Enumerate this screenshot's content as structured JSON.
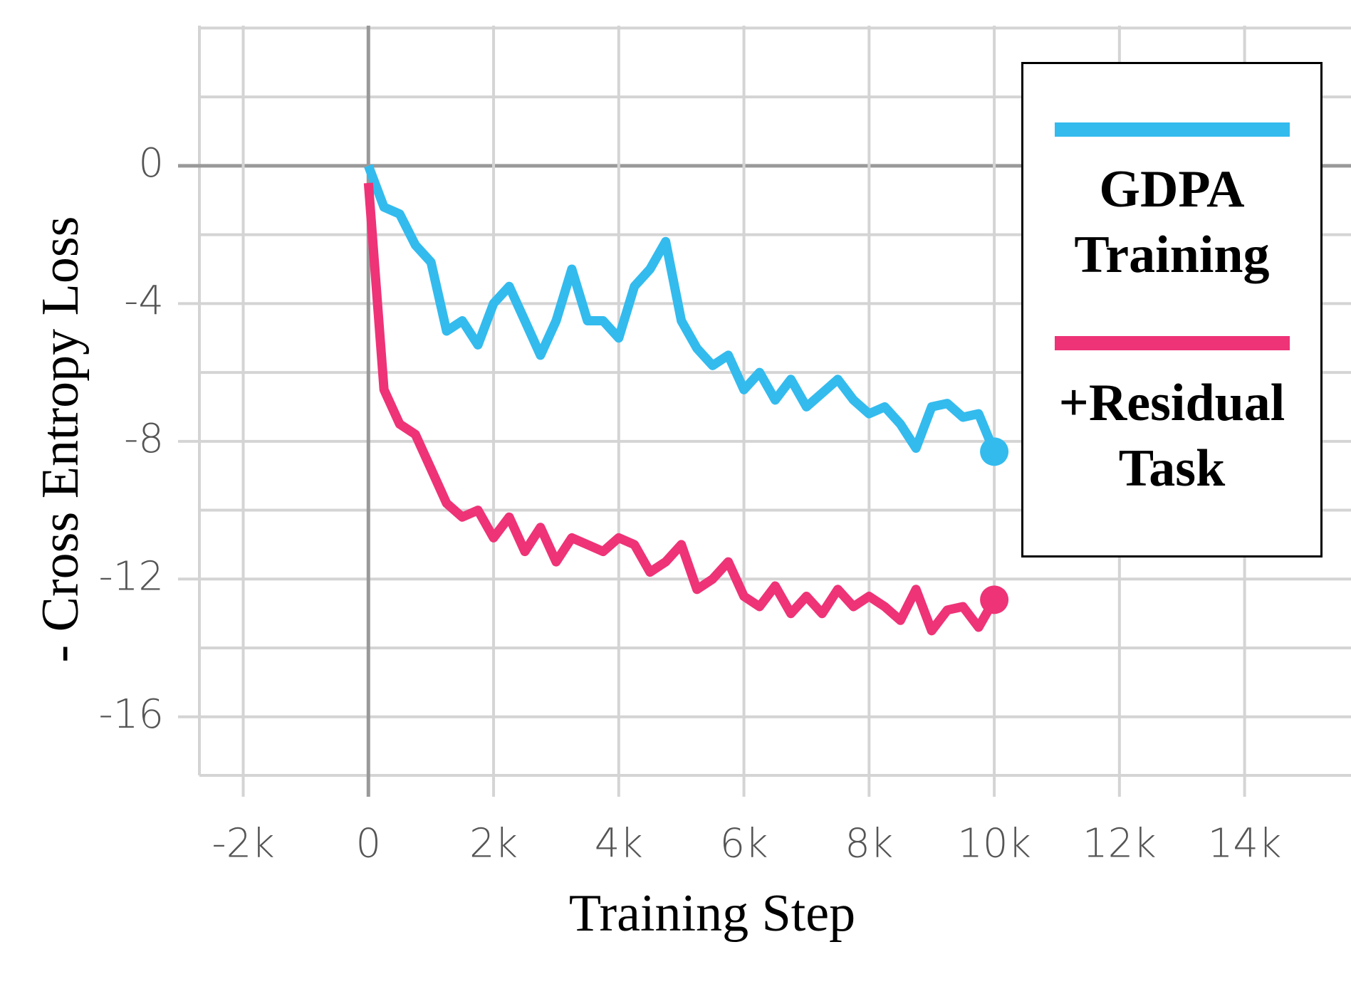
{
  "chart_data": {
    "type": "line",
    "x_label": "Training Step",
    "y_label": "- Cross Entropy Loss",
    "x": [
      0,
      250,
      500,
      750,
      1000,
      1250,
      1500,
      1750,
      2000,
      2250,
      2500,
      2750,
      3000,
      3250,
      3500,
      3750,
      4000,
      4250,
      4500,
      4750,
      5000,
      5250,
      5500,
      5750,
      6000,
      6250,
      6500,
      6750,
      7000,
      7250,
      7500,
      7750,
      8000,
      8250,
      8500,
      8750,
      9000,
      9250,
      9500,
      9750,
      10000
    ],
    "series": [
      {
        "name": "GDPA Training",
        "color": "#33bbee",
        "values": [
          0,
          -1.2,
          -1.4,
          -2.3,
          -2.8,
          -4.8,
          -4.5,
          -5.2,
          -4.0,
          -3.5,
          -4.5,
          -5.5,
          -4.5,
          -3.0,
          -4.5,
          -4.5,
          -5.0,
          -3.5,
          -3.0,
          -2.2,
          -4.5,
          -5.3,
          -5.8,
          -5.5,
          -6.5,
          -6.0,
          -6.8,
          -6.2,
          -7.0,
          -6.6,
          -6.2,
          -6.8,
          -7.2,
          -7.0,
          -7.5,
          -8.2,
          -7.0,
          -6.9,
          -7.3,
          -7.2,
          -8.3
        ]
      },
      {
        "name": "+Residual Task",
        "color": "#ee3377",
        "values": [
          -0.5,
          -6.5,
          -7.5,
          -7.8,
          -8.8,
          -9.8,
          -10.2,
          -10.0,
          -10.8,
          -10.2,
          -11.2,
          -10.5,
          -11.5,
          -10.8,
          -11.0,
          -11.2,
          -10.8,
          -11.0,
          -11.8,
          -11.5,
          -11.0,
          -12.3,
          -12.0,
          -11.5,
          -12.5,
          -12.8,
          -12.2,
          -13.0,
          -12.5,
          -13.0,
          -12.3,
          -12.8,
          -12.5,
          -12.8,
          -13.2,
          -12.3,
          -13.5,
          -12.9,
          -12.8,
          -13.4,
          -12.6
        ]
      }
    ],
    "xlim": [
      -2700,
      15700
    ],
    "ylim": [
      -17.7,
      4.07
    ],
    "xticks": [
      {
        "value": -2000,
        "label": "-2k"
      },
      0,
      {
        "value": 2000,
        "label": "2k"
      },
      {
        "value": 4000,
        "label": "4k"
      },
      {
        "value": 6000,
        "label": "6k"
      },
      {
        "value": 8000,
        "label": "8k"
      },
      {
        "value": 10000,
        "label": "10k"
      },
      {
        "value": 12000,
        "label": "12k"
      },
      {
        "value": 14000,
        "label": "14k"
      }
    ],
    "yticks": [
      0,
      -4,
      -8,
      -12,
      -16
    ],
    "grid": true,
    "legend": "upper right"
  }
}
